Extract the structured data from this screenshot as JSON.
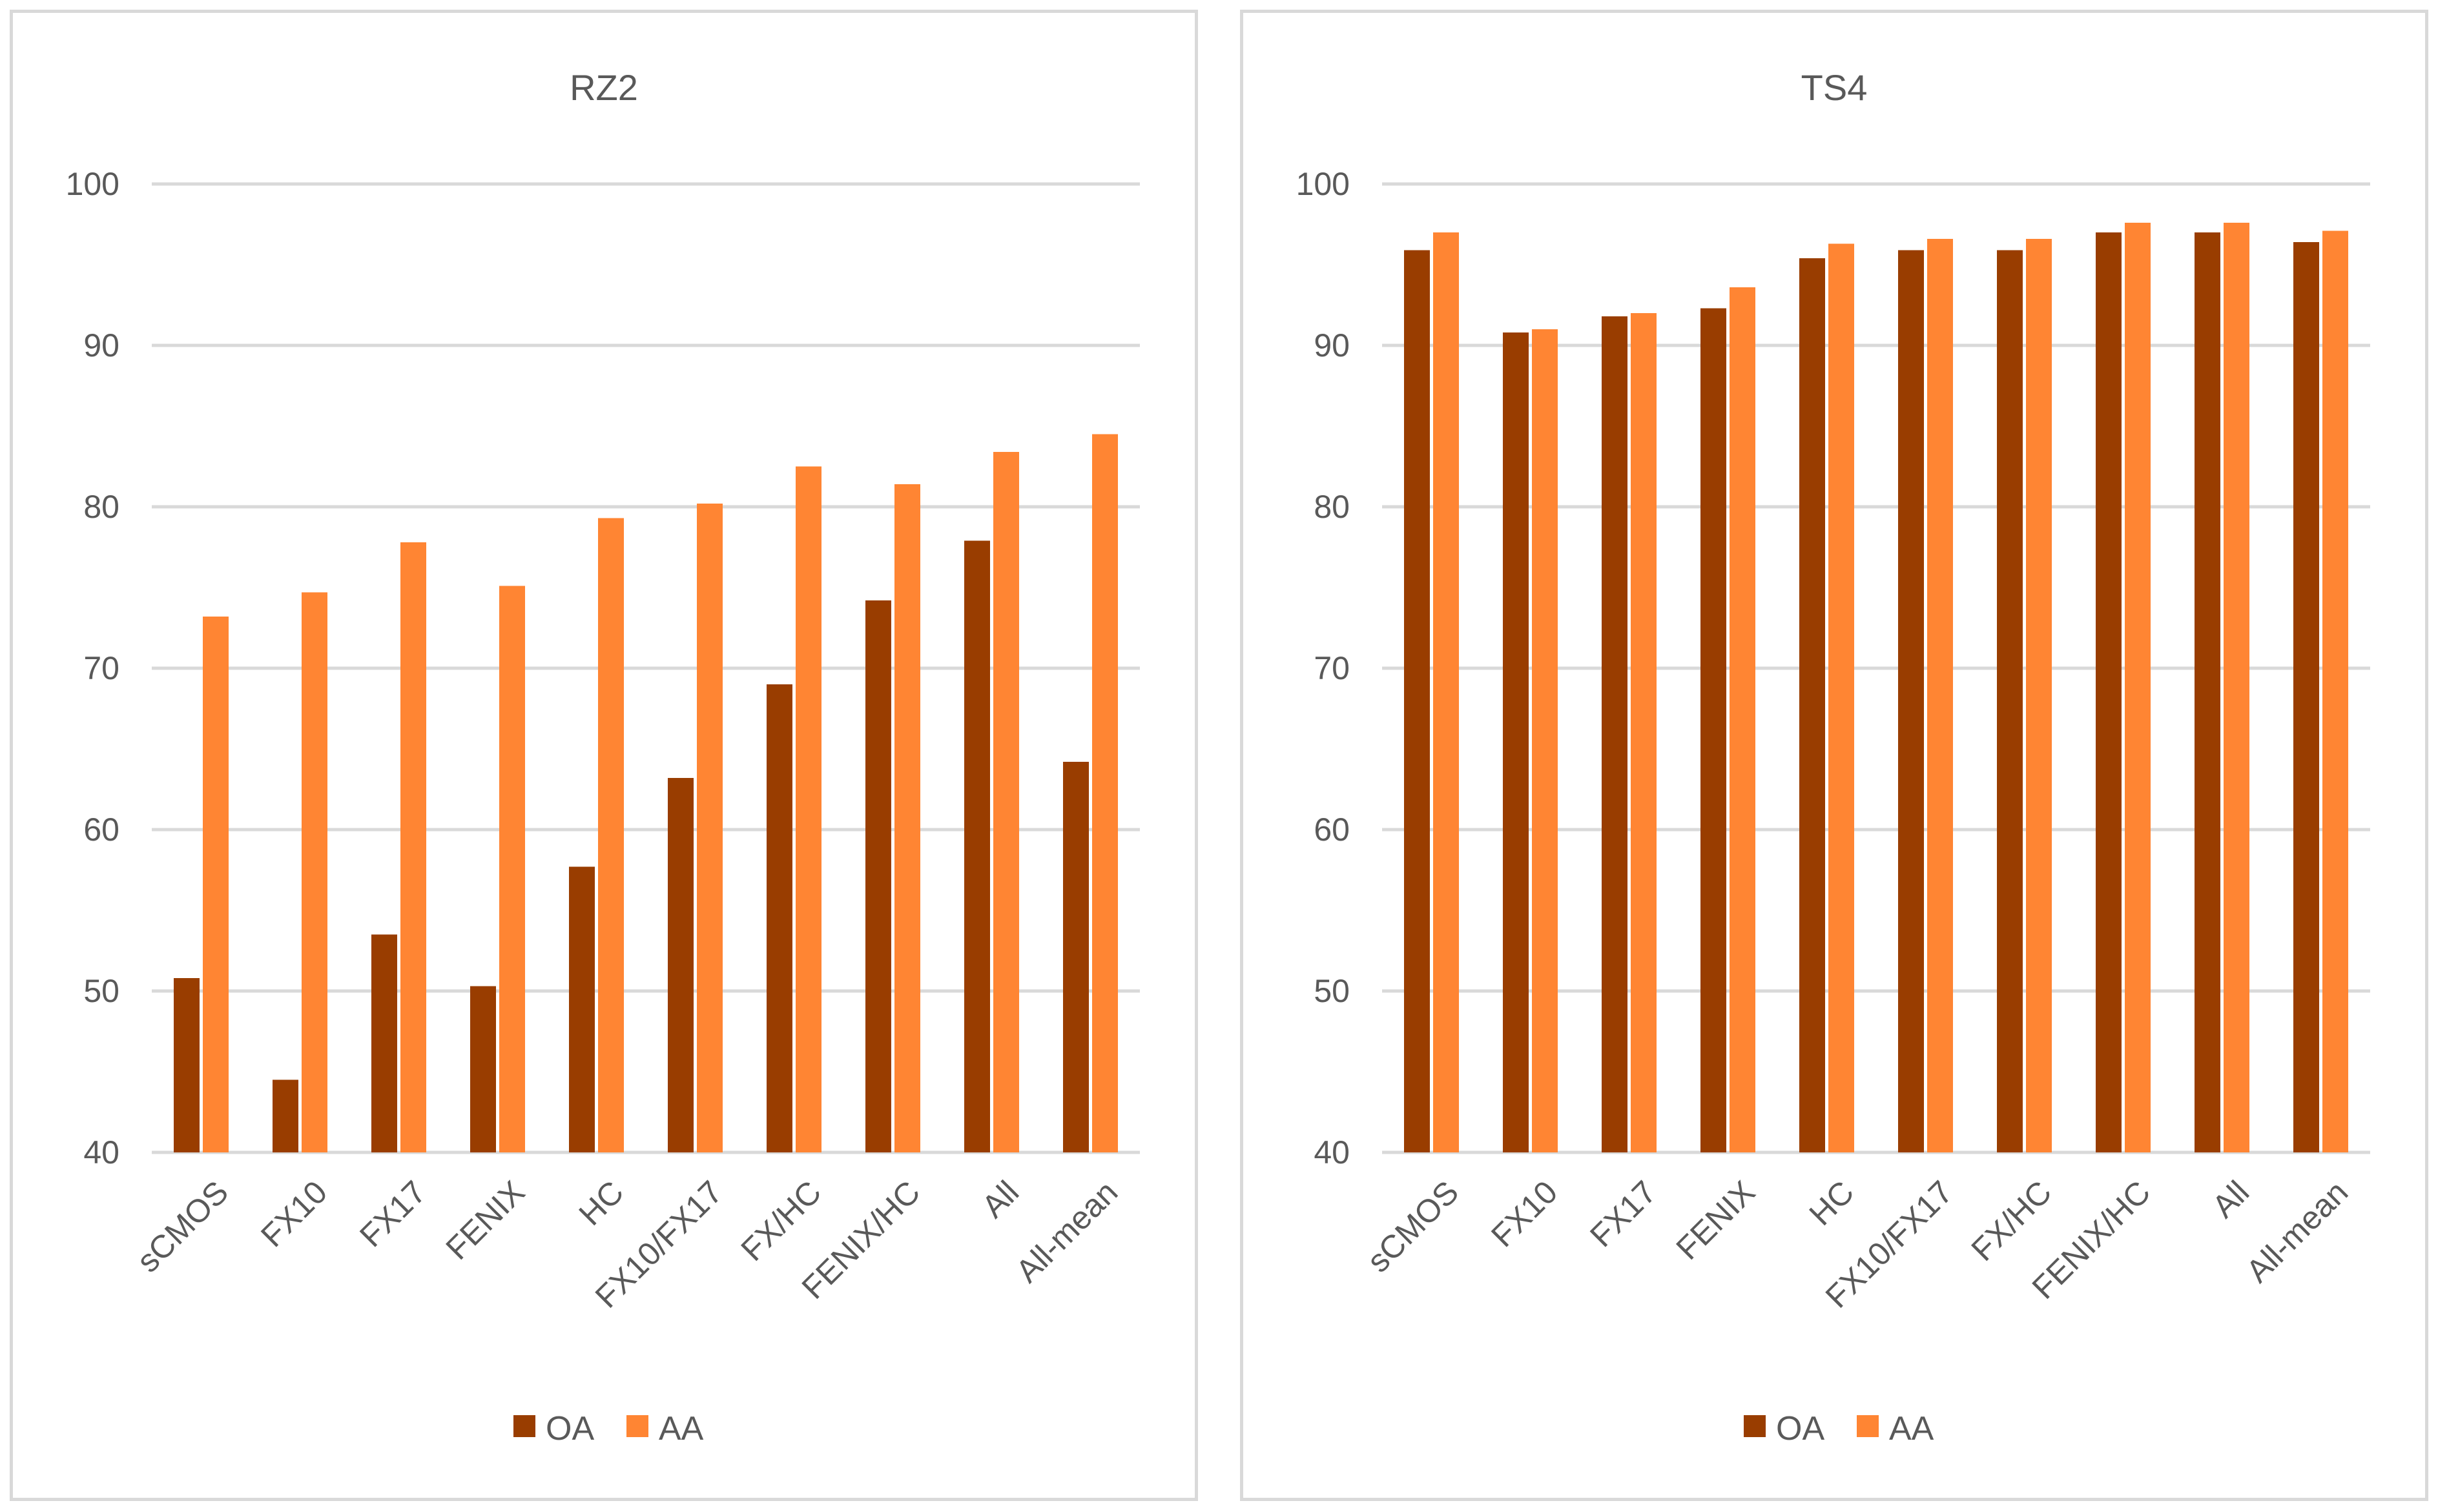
{
  "chart_data": [
    {
      "type": "bar",
      "title": "RZ2",
      "categories": [
        "sCMOS",
        "FX10",
        "FX17",
        "FENIX",
        "HC",
        "FX10/FX17",
        "FX/HC",
        "FENIX/HC",
        "All",
        "All-mean"
      ],
      "series": [
        {
          "name": "OA",
          "color": "#993d00",
          "values": [
            50.8,
            44.5,
            53.5,
            50.3,
            57.7,
            63.2,
            69.0,
            74.2,
            77.9,
            64.2
          ]
        },
        {
          "name": "AA",
          "color": "#ff8533",
          "values": [
            73.2,
            74.7,
            77.8,
            75.1,
            79.3,
            80.2,
            82.5,
            81.4,
            83.4,
            84.5
          ]
        }
      ],
      "ylim": [
        40,
        100
      ],
      "yticks": [
        "40",
        "50",
        "60",
        "70",
        "80",
        "90",
        "100"
      ],
      "grid": true,
      "legend_position": "bottom"
    },
    {
      "type": "bar",
      "title": "TS4",
      "categories": [
        "sCMOS",
        "FX10",
        "FX17",
        "FENIX",
        "HC",
        "FX10/FX17",
        "FX/HC",
        "FENIX/HC",
        "All",
        "All-mean"
      ],
      "series": [
        {
          "name": "OA",
          "color": "#993d00",
          "values": [
            95.9,
            90.8,
            91.8,
            92.3,
            95.4,
            95.9,
            95.9,
            97.0,
            97.0,
            96.4
          ]
        },
        {
          "name": "AA",
          "color": "#ff8533",
          "values": [
            97.0,
            91.0,
            92.0,
            93.6,
            96.3,
            96.6,
            96.6,
            97.6,
            97.6,
            97.1
          ]
        }
      ],
      "ylim": [
        40,
        100
      ],
      "yticks": [
        "40",
        "50",
        "60",
        "70",
        "80",
        "90",
        "100"
      ],
      "grid": true,
      "legend_position": "bottom"
    }
  ]
}
